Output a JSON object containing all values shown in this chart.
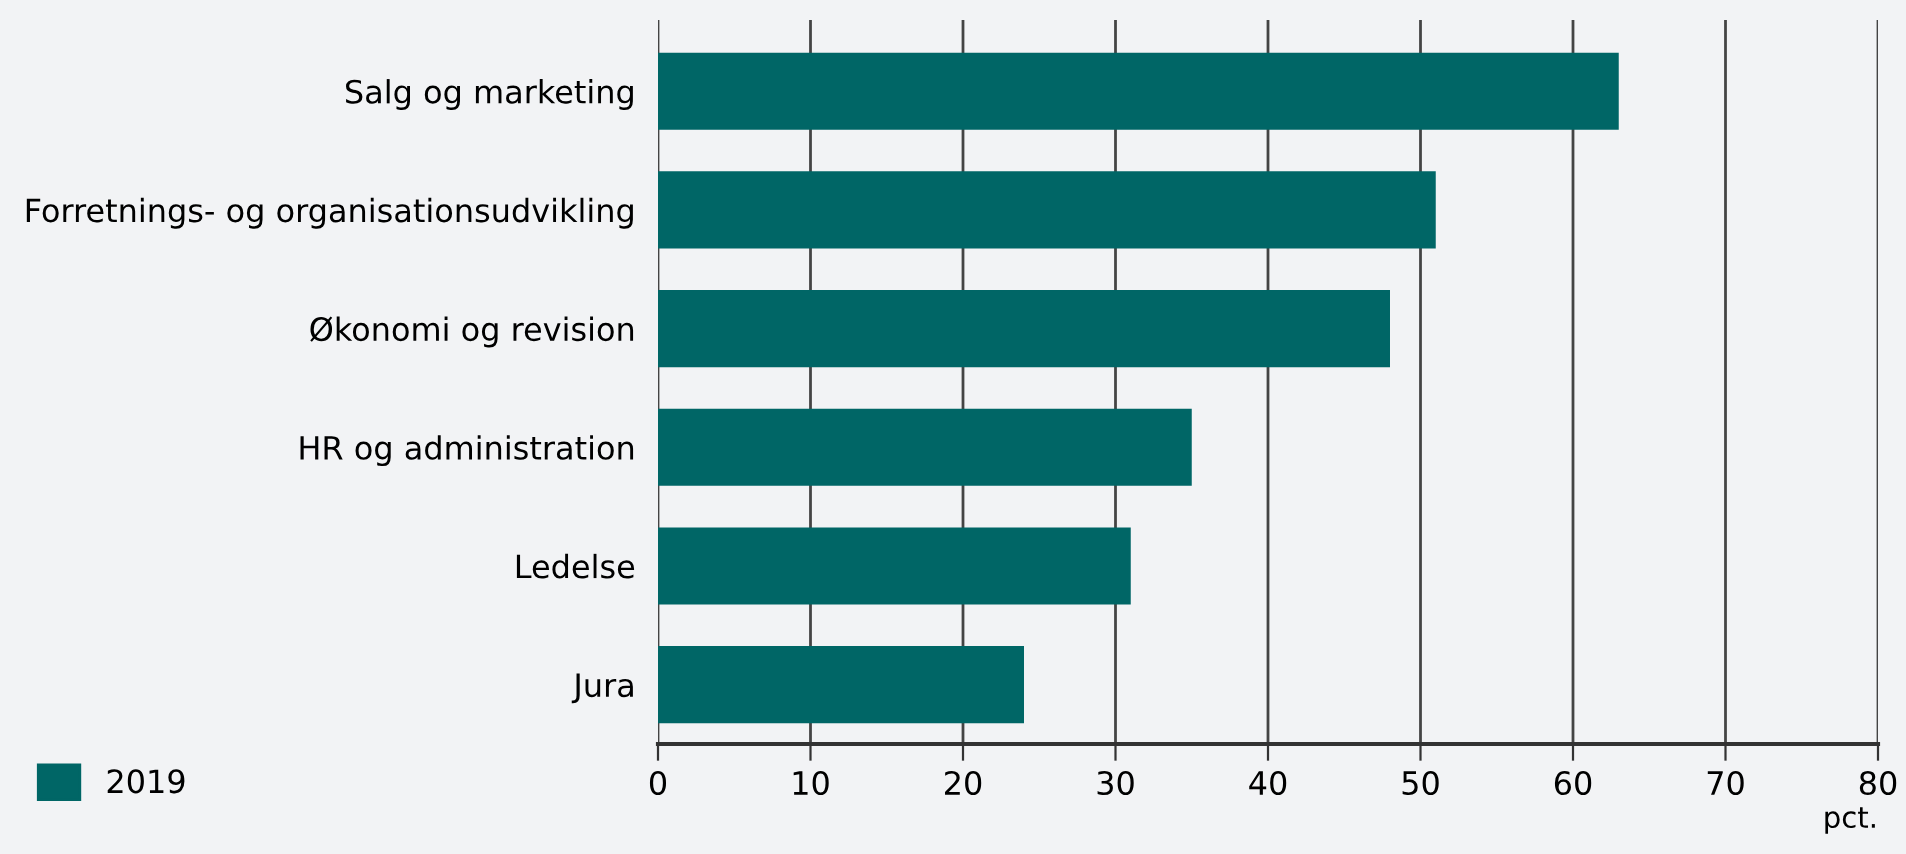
{
  "chart_data": {
    "type": "bar",
    "orientation": "horizontal",
    "xlabel": "pct.",
    "categories": [
      "Salg og marketing",
      "Forretnings- og organisationsudvikling",
      "Økonomi og revision",
      "HR og administration",
      "Ledelse",
      "Jura"
    ],
    "series": [
      {
        "name": "2019",
        "color": "#006666",
        "values": [
          63,
          51,
          48,
          35,
          31,
          24
        ]
      }
    ],
    "xlim": [
      0,
      80
    ],
    "xticks": [
      0,
      10,
      20,
      30,
      40,
      50,
      60,
      70,
      80
    ],
    "grid": "x",
    "legend": "bottom left"
  }
}
